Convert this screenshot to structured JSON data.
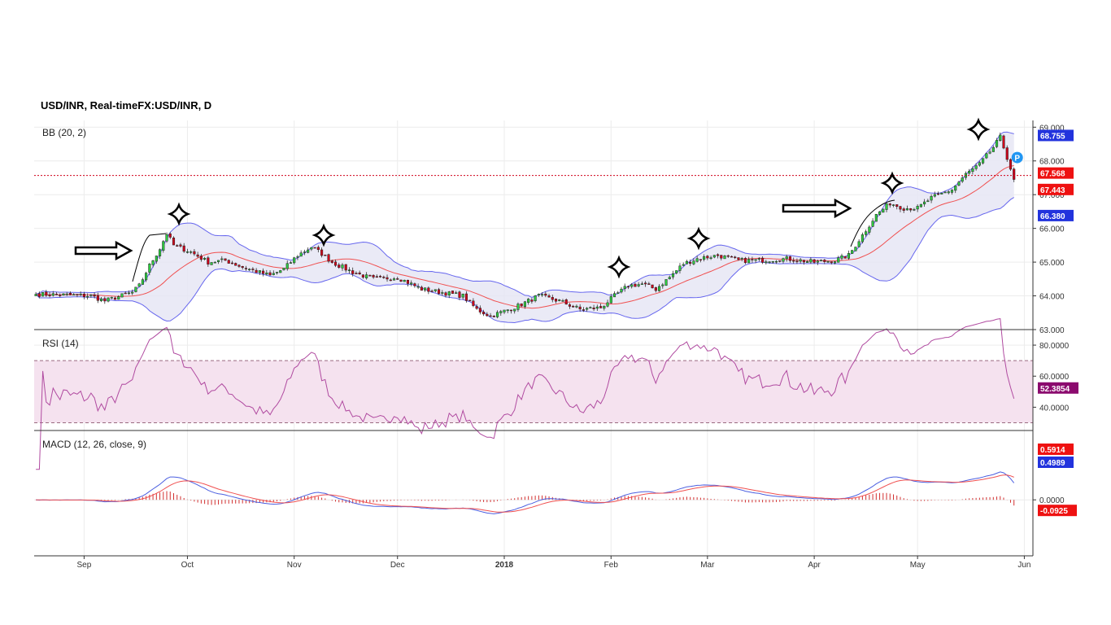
{
  "title": "USD/INR, Real-timeFX:USD/INR, D",
  "colors": {
    "up": "#2ecc40",
    "down": "#d0021b",
    "band_line": "#6666ee",
    "band_fill": "#e6e6f5",
    "ma": "#f05050",
    "rsi": "#b04aa0",
    "rsi_fill": "#f5e2ef",
    "macd": "#4a5ee0",
    "signal": "#f05050",
    "hist": "#d23030",
    "last_line": "#d0021b",
    "tag_red": "#ee1111",
    "tag_blue": "#2233dd",
    "tag_purple": "#8b0a6e",
    "pin": "#2196f3"
  },
  "pin_label": "P",
  "chart_data": [
    {
      "type": "candlestick",
      "pane_label": "BB (20, 2)",
      "ylim": [
        63.0,
        69.2
      ],
      "yticks": [
        "63.000",
        "64.000",
        "65.000",
        "66.000",
        "67.000",
        "68.000",
        "69.000"
      ],
      "xticks": [
        "Sep",
        "Oct",
        "Nov",
        "Dec",
        "2018",
        "Feb",
        "Mar",
        "Apr",
        "May",
        "Jun"
      ],
      "xtick_days": [
        14,
        44,
        75,
        105,
        136,
        167,
        195,
        226,
        256,
        287
      ],
      "close_anchors": [
        [
          0,
          64.05
        ],
        [
          10,
          64.02
        ],
        [
          16,
          64.0
        ],
        [
          20,
          63.85
        ],
        [
          28,
          64.1
        ],
        [
          30,
          64.3
        ],
        [
          33,
          64.9
        ],
        [
          36,
          65.4
        ],
        [
          38,
          65.85
        ],
        [
          40,
          65.5
        ],
        [
          45,
          65.3
        ],
        [
          50,
          65.0
        ],
        [
          55,
          65.05
        ],
        [
          60,
          64.85
        ],
        [
          68,
          64.6
        ],
        [
          72,
          64.8
        ],
        [
          76,
          65.2
        ],
        [
          80,
          65.45
        ],
        [
          83,
          65.25
        ],
        [
          86,
          65.0
        ],
        [
          92,
          64.7
        ],
        [
          98,
          64.5
        ],
        [
          105,
          64.55
        ],
        [
          112,
          64.2
        ],
        [
          118,
          64.1
        ],
        [
          124,
          64.0
        ],
        [
          128,
          63.6
        ],
        [
          132,
          63.4
        ],
        [
          136,
          63.55
        ],
        [
          140,
          63.7
        ],
        [
          146,
          64.0
        ],
        [
          152,
          63.85
        ],
        [
          158,
          63.6
        ],
        [
          164,
          63.65
        ],
        [
          168,
          64.0
        ],
        [
          172,
          64.3
        ],
        [
          176,
          64.35
        ],
        [
          180,
          64.2
        ],
        [
          184,
          64.55
        ],
        [
          188,
          64.95
        ],
        [
          192,
          65.1
        ],
        [
          198,
          65.2
        ],
        [
          204,
          65.05
        ],
        [
          210,
          65.05
        ],
        [
          218,
          65.1
        ],
        [
          226,
          65.0
        ],
        [
          232,
          65.05
        ],
        [
          236,
          65.2
        ],
        [
          240,
          65.8
        ],
        [
          244,
          66.4
        ],
        [
          248,
          66.75
        ],
        [
          252,
          66.6
        ],
        [
          256,
          66.6
        ],
        [
          260,
          66.9
        ],
        [
          266,
          67.15
        ],
        [
          270,
          67.6
        ],
        [
          274,
          67.9
        ],
        [
          278,
          68.4
        ],
        [
          280,
          68.7
        ],
        [
          282,
          68.1
        ],
        [
          284,
          67.45
        ]
      ],
      "last_close": "67.443",
      "last_value_tag": "67.568",
      "upper_band_last": "68.755",
      "lower_band_last": "66.380",
      "bb_period": 20,
      "bb_mult": 2
    },
    {
      "type": "line",
      "pane_label": "RSI (14)",
      "ylim": [
        25,
        90
      ],
      "yticks": [
        "40.0000",
        "60.0000",
        "80.0000"
      ],
      "bands": [
        30,
        70
      ],
      "period": 14,
      "last_value_tag": "52.3854"
    },
    {
      "type": "line",
      "pane_label": "MACD (12, 26, close, 9)",
      "ylim": [
        -1.05,
        1.3
      ],
      "yticks": [
        "0.0000"
      ],
      "fast": 12,
      "slow": 26,
      "signal": 9,
      "signal_tag": "0.5914",
      "macd_tag": "0.4989",
      "hist_tag": "-0.0925"
    }
  ]
}
